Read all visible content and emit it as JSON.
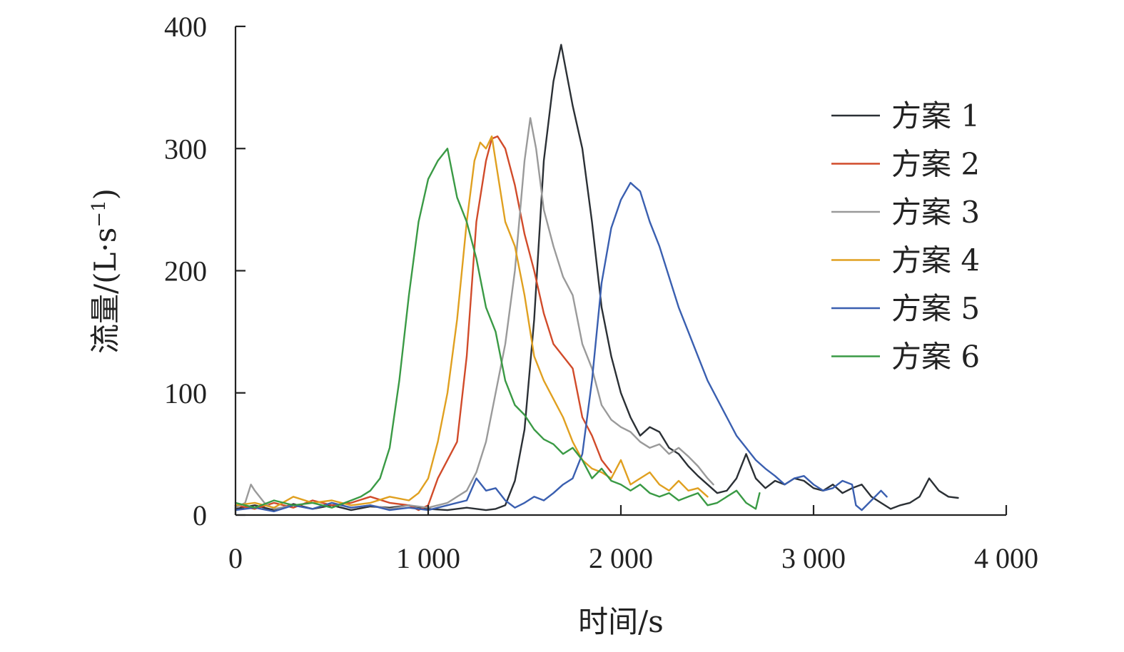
{
  "chart_data": {
    "type": "line",
    "title": "",
    "xlabel": "时间/s",
    "ylabel_main": "流量/(L·s",
    "ylabel_sup": "−1",
    "ylabel_close": ")",
    "xlim": [
      0,
      4000
    ],
    "ylim": [
      0,
      400
    ],
    "xticks": [
      0,
      1000,
      2000,
      3000,
      4000
    ],
    "xtick_labels": [
      "0",
      "1 000",
      "2 000",
      "3 000",
      "4 000"
    ],
    "yticks": [
      0,
      100,
      200,
      300,
      400
    ],
    "ytick_labels": [
      "0",
      "100",
      "200",
      "300",
      "400"
    ],
    "grid": false,
    "legend_position": "top-right",
    "series": [
      {
        "name": "方案 1",
        "color": "#2b3035",
        "points": [
          [
            0,
            5
          ],
          [
            100,
            8
          ],
          [
            200,
            4
          ],
          [
            300,
            9
          ],
          [
            400,
            5
          ],
          [
            500,
            8
          ],
          [
            600,
            4
          ],
          [
            700,
            7
          ],
          [
            800,
            6
          ],
          [
            900,
            8
          ],
          [
            1000,
            5
          ],
          [
            1100,
            4
          ],
          [
            1200,
            6
          ],
          [
            1300,
            4
          ],
          [
            1350,
            5
          ],
          [
            1400,
            8
          ],
          [
            1450,
            28
          ],
          [
            1500,
            70
          ],
          [
            1550,
            160
          ],
          [
            1600,
            290
          ],
          [
            1650,
            355
          ],
          [
            1690,
            385
          ],
          [
            1720,
            360
          ],
          [
            1750,
            335
          ],
          [
            1800,
            300
          ],
          [
            1850,
            240
          ],
          [
            1900,
            170
          ],
          [
            1950,
            130
          ],
          [
            2000,
            100
          ],
          [
            2050,
            80
          ],
          [
            2100,
            65
          ],
          [
            2150,
            72
          ],
          [
            2200,
            68
          ],
          [
            2250,
            55
          ],
          [
            2300,
            50
          ],
          [
            2350,
            40
          ],
          [
            2400,
            32
          ],
          [
            2450,
            25
          ],
          [
            2500,
            18
          ],
          [
            2550,
            20
          ],
          [
            2600,
            30
          ],
          [
            2650,
            50
          ],
          [
            2700,
            30
          ],
          [
            2750,
            22
          ],
          [
            2800,
            28
          ],
          [
            2850,
            25
          ],
          [
            2900,
            30
          ],
          [
            2950,
            28
          ],
          [
            3000,
            22
          ],
          [
            3050,
            20
          ],
          [
            3100,
            25
          ],
          [
            3150,
            18
          ],
          [
            3200,
            22
          ],
          [
            3250,
            25
          ],
          [
            3300,
            15
          ],
          [
            3350,
            10
          ],
          [
            3400,
            5
          ],
          [
            3450,
            8
          ],
          [
            3500,
            10
          ],
          [
            3550,
            15
          ],
          [
            3600,
            30
          ],
          [
            3650,
            20
          ],
          [
            3700,
            15
          ],
          [
            3750,
            14
          ]
        ]
      },
      {
        "name": "方案 2",
        "color": "#d14b2a",
        "points": [
          [
            0,
            8
          ],
          [
            100,
            5
          ],
          [
            200,
            10
          ],
          [
            300,
            6
          ],
          [
            400,
            12
          ],
          [
            500,
            8
          ],
          [
            600,
            10
          ],
          [
            700,
            15
          ],
          [
            800,
            10
          ],
          [
            900,
            8
          ],
          [
            950,
            4
          ],
          [
            1000,
            8
          ],
          [
            1050,
            30
          ],
          [
            1100,
            45
          ],
          [
            1150,
            60
          ],
          [
            1200,
            130
          ],
          [
            1250,
            240
          ],
          [
            1300,
            290
          ],
          [
            1330,
            308
          ],
          [
            1360,
            310
          ],
          [
            1400,
            300
          ],
          [
            1450,
            270
          ],
          [
            1500,
            230
          ],
          [
            1550,
            200
          ],
          [
            1600,
            165
          ],
          [
            1650,
            140
          ],
          [
            1700,
            130
          ],
          [
            1750,
            120
          ],
          [
            1800,
            80
          ],
          [
            1850,
            65
          ],
          [
            1900,
            45
          ],
          [
            1950,
            35
          ]
        ]
      },
      {
        "name": "方案 3",
        "color": "#9a9a9a",
        "points": [
          [
            0,
            6
          ],
          [
            50,
            10
          ],
          [
            80,
            25
          ],
          [
            100,
            20
          ],
          [
            150,
            10
          ],
          [
            200,
            5
          ],
          [
            300,
            8
          ],
          [
            400,
            5
          ],
          [
            500,
            10
          ],
          [
            600,
            6
          ],
          [
            700,
            8
          ],
          [
            800,
            5
          ],
          [
            900,
            8
          ],
          [
            1000,
            6
          ],
          [
            1100,
            10
          ],
          [
            1150,
            15
          ],
          [
            1200,
            20
          ],
          [
            1250,
            35
          ],
          [
            1300,
            60
          ],
          [
            1350,
            100
          ],
          [
            1400,
            140
          ],
          [
            1450,
            200
          ],
          [
            1500,
            290
          ],
          [
            1530,
            325
          ],
          [
            1560,
            300
          ],
          [
            1600,
            250
          ],
          [
            1650,
            220
          ],
          [
            1700,
            195
          ],
          [
            1750,
            180
          ],
          [
            1800,
            140
          ],
          [
            1850,
            120
          ],
          [
            1900,
            90
          ],
          [
            1950,
            78
          ],
          [
            2000,
            72
          ],
          [
            2050,
            68
          ],
          [
            2100,
            60
          ],
          [
            2150,
            55
          ],
          [
            2200,
            58
          ],
          [
            2250,
            50
          ],
          [
            2300,
            55
          ],
          [
            2350,
            48
          ],
          [
            2400,
            40
          ],
          [
            2450,
            30
          ],
          [
            2480,
            25
          ]
        ]
      },
      {
        "name": "方案 4",
        "color": "#e0a020",
        "points": [
          [
            0,
            8
          ],
          [
            100,
            10
          ],
          [
            200,
            6
          ],
          [
            300,
            15
          ],
          [
            400,
            10
          ],
          [
            500,
            12
          ],
          [
            600,
            8
          ],
          [
            700,
            10
          ],
          [
            800,
            15
          ],
          [
            900,
            12
          ],
          [
            950,
            18
          ],
          [
            1000,
            30
          ],
          [
            1050,
            60
          ],
          [
            1100,
            100
          ],
          [
            1150,
            160
          ],
          [
            1200,
            240
          ],
          [
            1240,
            290
          ],
          [
            1270,
            305
          ],
          [
            1300,
            300
          ],
          [
            1330,
            310
          ],
          [
            1360,
            280
          ],
          [
            1400,
            240
          ],
          [
            1450,
            220
          ],
          [
            1500,
            180
          ],
          [
            1550,
            130
          ],
          [
            1600,
            110
          ],
          [
            1650,
            95
          ],
          [
            1700,
            80
          ],
          [
            1750,
            60
          ],
          [
            1800,
            45
          ],
          [
            1850,
            38
          ],
          [
            1900,
            35
          ],
          [
            1950,
            30
          ],
          [
            2000,
            45
          ],
          [
            2050,
            25
          ],
          [
            2100,
            30
          ],
          [
            2150,
            35
          ],
          [
            2200,
            25
          ],
          [
            2250,
            20
          ],
          [
            2300,
            28
          ],
          [
            2350,
            20
          ],
          [
            2400,
            22
          ],
          [
            2450,
            15
          ]
        ]
      },
      {
        "name": "方案 5",
        "color": "#3a5fb0",
        "points": [
          [
            0,
            4
          ],
          [
            100,
            6
          ],
          [
            200,
            3
          ],
          [
            300,
            8
          ],
          [
            400,
            5
          ],
          [
            500,
            10
          ],
          [
            600,
            6
          ],
          [
            700,
            8
          ],
          [
            800,
            4
          ],
          [
            900,
            6
          ],
          [
            1000,
            4
          ],
          [
            1100,
            8
          ],
          [
            1200,
            12
          ],
          [
            1250,
            30
          ],
          [
            1300,
            20
          ],
          [
            1350,
            22
          ],
          [
            1400,
            12
          ],
          [
            1450,
            6
          ],
          [
            1500,
            10
          ],
          [
            1550,
            15
          ],
          [
            1600,
            12
          ],
          [
            1650,
            18
          ],
          [
            1700,
            25
          ],
          [
            1750,
            30
          ],
          [
            1800,
            50
          ],
          [
            1850,
            110
          ],
          [
            1900,
            190
          ],
          [
            1950,
            235
          ],
          [
            2000,
            258
          ],
          [
            2050,
            272
          ],
          [
            2100,
            265
          ],
          [
            2150,
            240
          ],
          [
            2200,
            220
          ],
          [
            2250,
            195
          ],
          [
            2300,
            170
          ],
          [
            2350,
            150
          ],
          [
            2400,
            130
          ],
          [
            2450,
            110
          ],
          [
            2500,
            95
          ],
          [
            2550,
            80
          ],
          [
            2600,
            65
          ],
          [
            2650,
            55
          ],
          [
            2700,
            45
          ],
          [
            2750,
            38
          ],
          [
            2800,
            32
          ],
          [
            2850,
            25
          ],
          [
            2900,
            30
          ],
          [
            2950,
            32
          ],
          [
            3000,
            25
          ],
          [
            3050,
            20
          ],
          [
            3100,
            22
          ],
          [
            3150,
            28
          ],
          [
            3200,
            25
          ],
          [
            3220,
            8
          ],
          [
            3250,
            4
          ],
          [
            3300,
            12
          ],
          [
            3350,
            20
          ],
          [
            3380,
            15
          ]
        ]
      },
      {
        "name": "方案 6",
        "color": "#3a9a45",
        "points": [
          [
            0,
            10
          ],
          [
            100,
            6
          ],
          [
            200,
            12
          ],
          [
            300,
            8
          ],
          [
            400,
            10
          ],
          [
            500,
            6
          ],
          [
            600,
            12
          ],
          [
            650,
            15
          ],
          [
            700,
            20
          ],
          [
            750,
            30
          ],
          [
            800,
            55
          ],
          [
            850,
            110
          ],
          [
            900,
            180
          ],
          [
            950,
            240
          ],
          [
            1000,
            275
          ],
          [
            1050,
            290
          ],
          [
            1100,
            300
          ],
          [
            1150,
            260
          ],
          [
            1200,
            240
          ],
          [
            1250,
            210
          ],
          [
            1300,
            170
          ],
          [
            1350,
            150
          ],
          [
            1400,
            110
          ],
          [
            1450,
            90
          ],
          [
            1500,
            82
          ],
          [
            1550,
            70
          ],
          [
            1600,
            62
          ],
          [
            1650,
            58
          ],
          [
            1700,
            50
          ],
          [
            1750,
            55
          ],
          [
            1800,
            45
          ],
          [
            1850,
            30
          ],
          [
            1900,
            38
          ],
          [
            1950,
            28
          ],
          [
            2000,
            25
          ],
          [
            2050,
            20
          ],
          [
            2100,
            25
          ],
          [
            2150,
            18
          ],
          [
            2200,
            15
          ],
          [
            2250,
            18
          ],
          [
            2300,
            12
          ],
          [
            2350,
            15
          ],
          [
            2400,
            18
          ],
          [
            2450,
            8
          ],
          [
            2500,
            10
          ],
          [
            2550,
            15
          ],
          [
            2600,
            20
          ],
          [
            2650,
            10
          ],
          [
            2700,
            5
          ],
          [
            2720,
            18
          ]
        ]
      }
    ]
  }
}
